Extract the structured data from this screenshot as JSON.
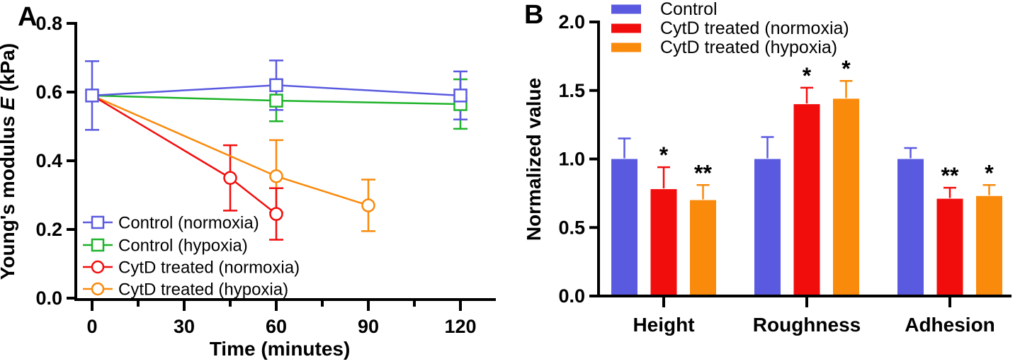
{
  "figure": {
    "background": "#FFFFFF",
    "axis_color": "#000000",
    "panels": [
      {
        "label": "A"
      },
      {
        "label": "B"
      }
    ]
  },
  "chart_data": [
    {
      "panel": "A",
      "type": "line",
      "xlabel": "Time (minutes)",
      "ylabel_parts": {
        "prefix": "Young's modulus ",
        "italic": "E",
        "suffix": " (kPa)"
      },
      "ylabel": "Young's modulus E (kPa)",
      "xlim": [
        0,
        132
      ],
      "ylim": [
        0.0,
        0.8
      ],
      "xticks_major": [
        0,
        30,
        60,
        90,
        120
      ],
      "xtick_labels": [
        "0",
        "30",
        "60",
        "90",
        "120"
      ],
      "xticks_minor": [
        15,
        45,
        75,
        105
      ],
      "yticks": [
        0.0,
        0.2,
        0.4,
        0.6,
        0.8
      ],
      "ytick_labels": [
        "0.0",
        "0.2",
        "0.4",
        "0.6",
        "0.8"
      ],
      "grid": false,
      "legend_position": "inside lower-left",
      "series": [
        {
          "name": "CytD treated (hypoxia)",
          "color": "#F98A0C",
          "marker": "circle",
          "x": [
            0,
            60,
            90
          ],
          "y": [
            0.59,
            0.355,
            0.27
          ],
          "err": [
            0,
            0.105,
            0.075
          ]
        },
        {
          "name": "CytD treated (normoxia)",
          "color": "#F20D0D",
          "marker": "circle",
          "x": [
            0,
            45,
            60
          ],
          "y": [
            0.59,
            0.35,
            0.245
          ],
          "err": [
            0,
            0.095,
            0.075
          ]
        },
        {
          "name": "Control (hypoxia)",
          "color": "#1EB32A",
          "marker": "square",
          "x": [
            0,
            60,
            120
          ],
          "y": [
            0.59,
            0.575,
            0.565
          ],
          "err": [
            0,
            0.06,
            0.072
          ]
        },
        {
          "name": "Control (normoxia)",
          "color": "#5A5AE0",
          "marker": "square",
          "x": [
            0,
            60,
            120
          ],
          "y": [
            0.59,
            0.62,
            0.59
          ],
          "err": [
            0.1,
            0.072,
            0.07
          ]
        }
      ],
      "legend_order": [
        "Control (normoxia)",
        "Control (hypoxia)",
        "CytD treated (normoxia)",
        "CytD treated (hypoxia)"
      ]
    },
    {
      "panel": "B",
      "type": "bar",
      "ylabel": "Normalized value",
      "categories": [
        "Height",
        "Roughness",
        "Adhesion"
      ],
      "ylim": [
        0.0,
        2.0
      ],
      "yticks": [
        0.0,
        0.5,
        1.0,
        1.5,
        2.0
      ],
      "ytick_labels": [
        "0.0",
        "0.5",
        "1.0",
        "1.5",
        "2.0"
      ],
      "grid": false,
      "legend_position": "top",
      "series": [
        {
          "name": "Control",
          "color": "#5A5AE0",
          "values": [
            1.0,
            1.0,
            1.0
          ],
          "errors": [
            0.15,
            0.16,
            0.08
          ],
          "sig": [
            "",
            "",
            ""
          ]
        },
        {
          "name": "CytD treated (normoxia)",
          "color": "#F20D0D",
          "values": [
            0.78,
            1.4,
            0.71
          ],
          "errors": [
            0.16,
            0.12,
            0.08
          ],
          "sig": [
            "*",
            "*",
            "**"
          ]
        },
        {
          "name": "CytD treated (hypoxia)",
          "color": "#F98A0C",
          "values": [
            0.7,
            1.44,
            0.73
          ],
          "errors": [
            0.11,
            0.13,
            0.08
          ],
          "sig": [
            "**",
            "*",
            "*"
          ]
        }
      ]
    }
  ]
}
